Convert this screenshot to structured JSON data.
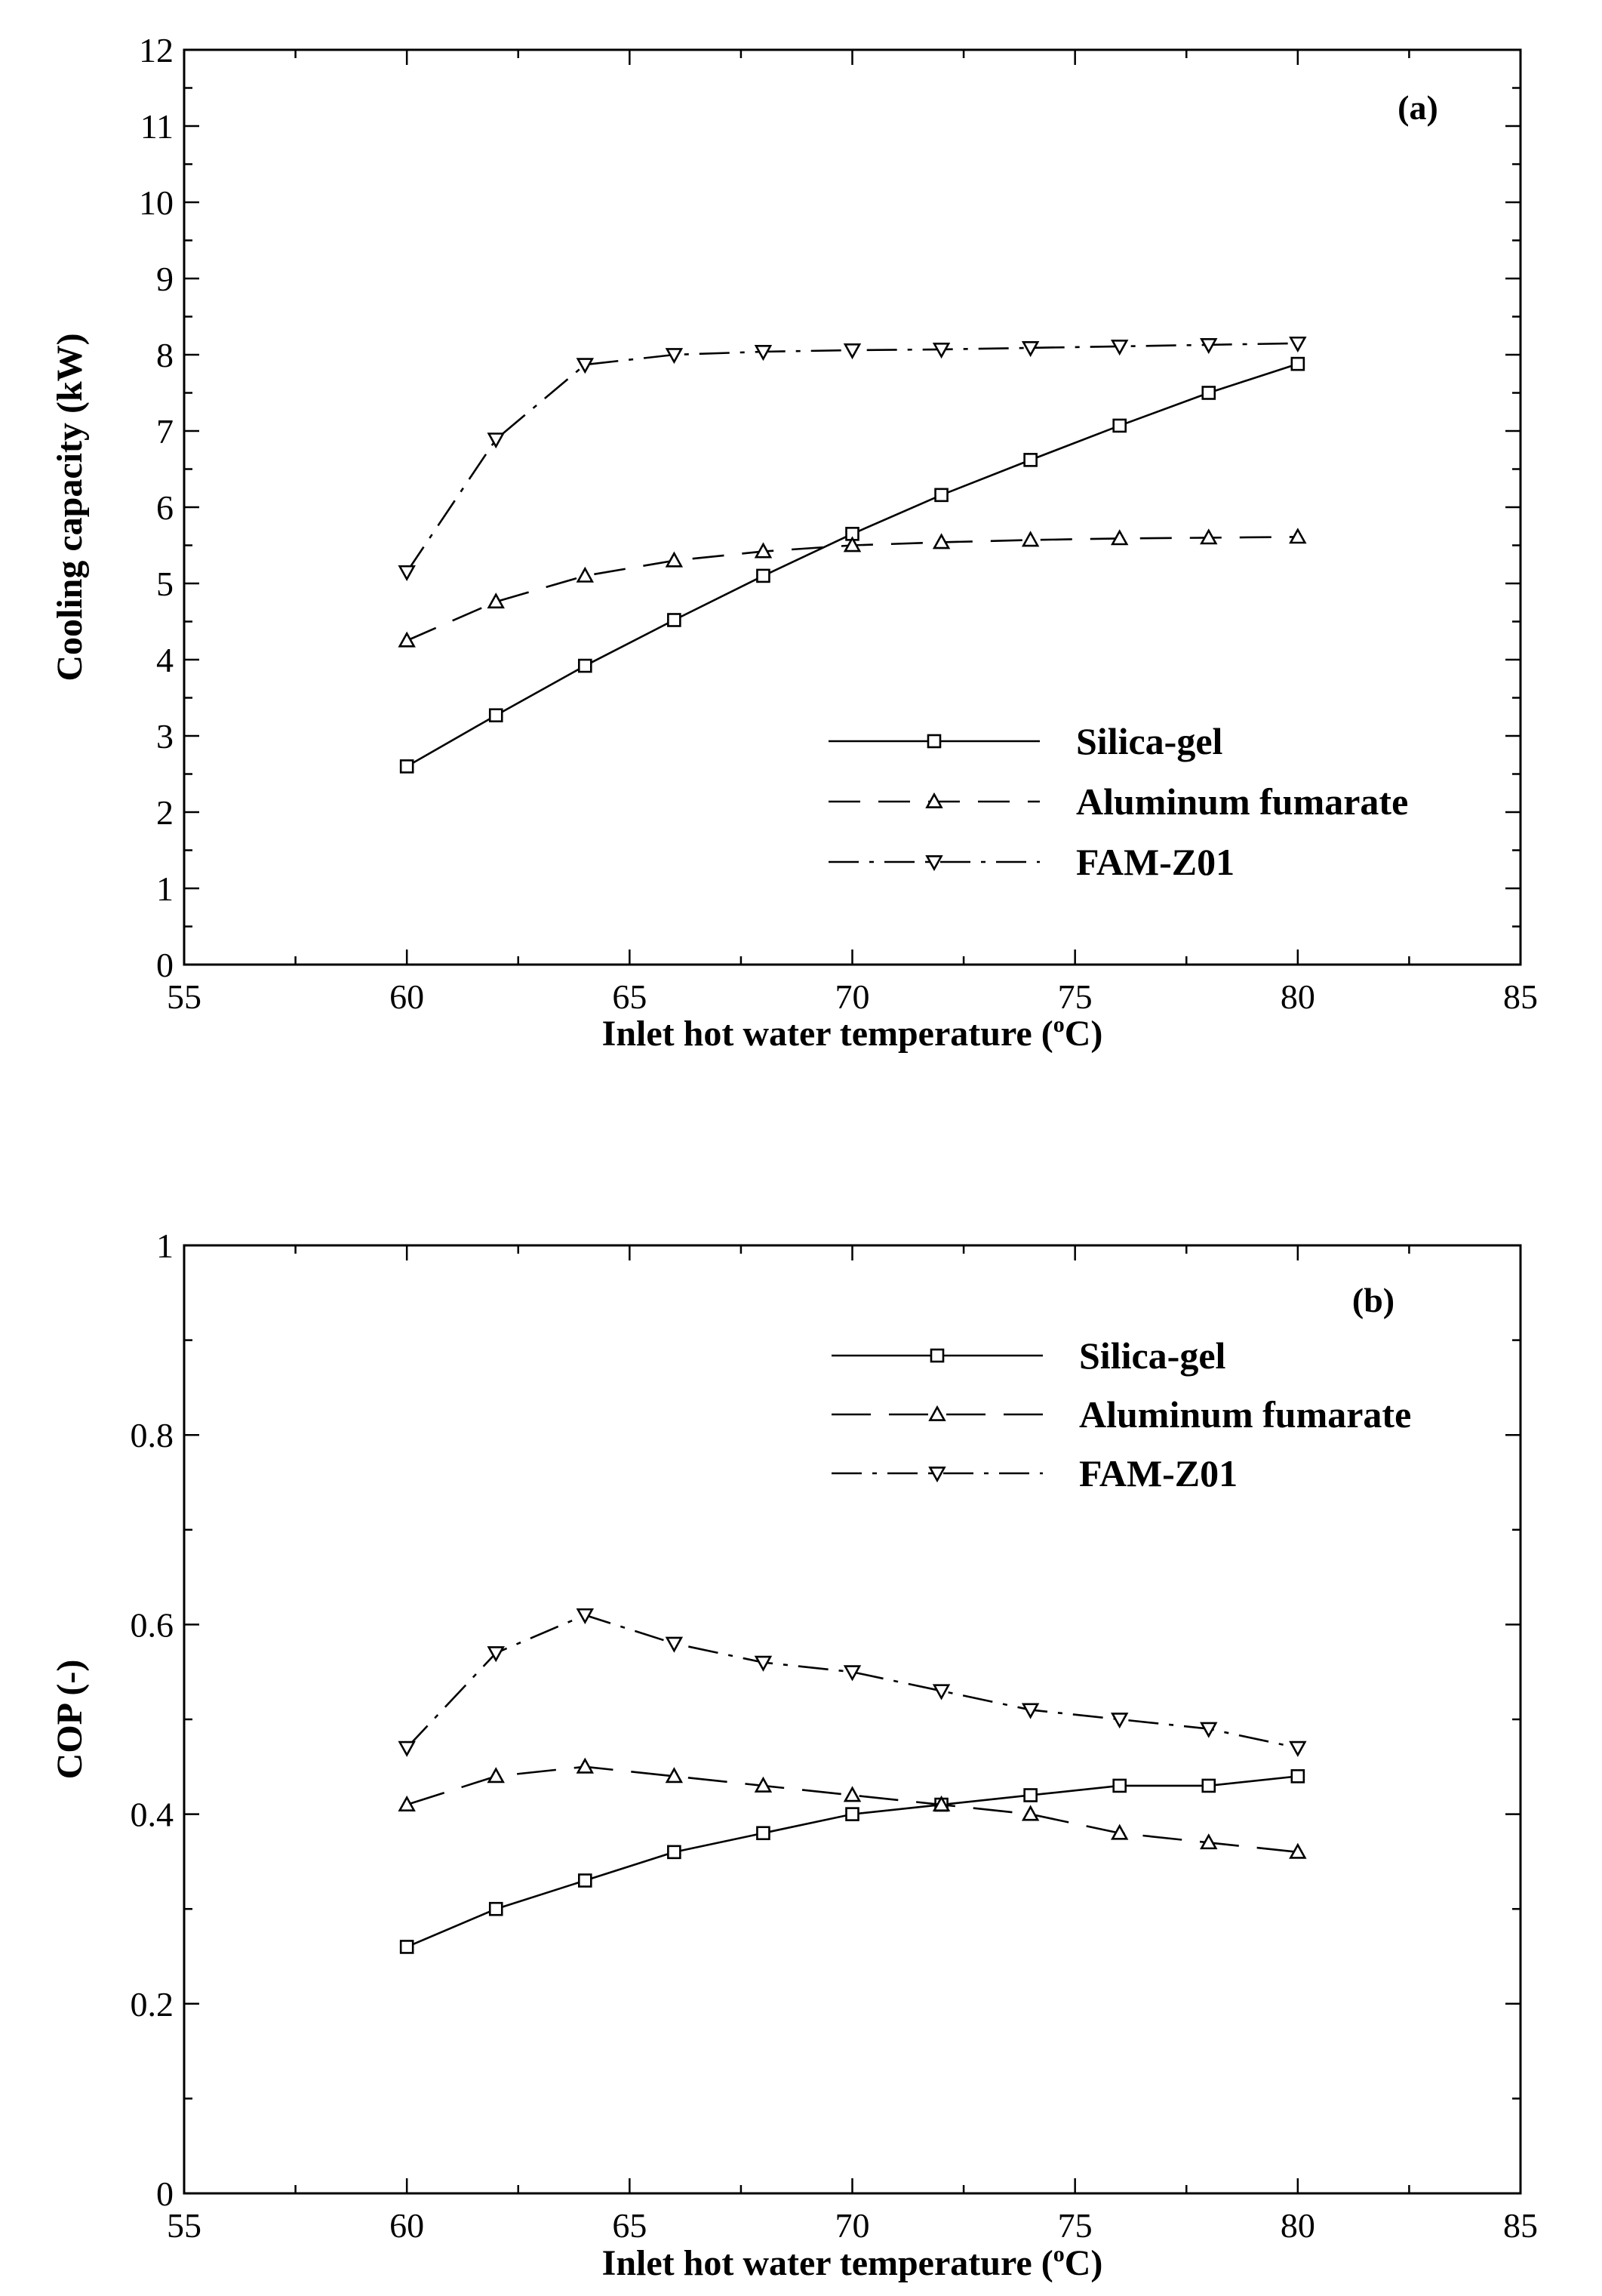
{
  "colors": {
    "background": "#ffffff",
    "ink": "#000000"
  },
  "chart_data": [
    {
      "id": "a",
      "type": "line",
      "panel_label": "(a)",
      "title": "",
      "xlabel": "Inlet hot water temperature (",
      "xlabel_superscript": "o",
      "xlabel_suffix": "C)",
      "ylabel": "Cooling capacity (kW)",
      "xlim": [
        55,
        85
      ],
      "ylim": [
        0,
        12
      ],
      "xticks": [
        55,
        60,
        65,
        70,
        75,
        80,
        85
      ],
      "xtick_labels": [
        "55",
        "60",
        "65",
        "70",
        "75",
        "80",
        "85"
      ],
      "yticks": [
        0,
        1,
        2,
        3,
        4,
        5,
        6,
        7,
        8,
        9,
        10,
        11,
        12
      ],
      "ytick_labels": [
        "0",
        "1",
        "2",
        "3",
        "4",
        "5",
        "6",
        "7",
        "8",
        "9",
        "10",
        "11",
        "12"
      ],
      "grid": false,
      "legend_position": "lower-right",
      "x": [
        60,
        62,
        64,
        66,
        68,
        70,
        72,
        74,
        76,
        78,
        80
      ],
      "series": [
        {
          "name": "Silica-gel",
          "line_style": "solid",
          "marker": "square",
          "values": [
            2.6,
            3.27,
            3.92,
            4.52,
            5.1,
            5.65,
            6.16,
            6.62,
            7.07,
            7.5,
            7.88
          ]
        },
        {
          "name": "Aluminum fumarate",
          "line_style": "dashed",
          "marker": "triangle-up",
          "values": [
            4.25,
            4.76,
            5.1,
            5.3,
            5.42,
            5.5,
            5.54,
            5.57,
            5.59,
            5.6,
            5.61
          ]
        },
        {
          "name": "FAM-Z01",
          "line_style": "dash-dot",
          "marker": "triangle-down",
          "values": [
            5.15,
            6.89,
            7.87,
            8.0,
            8.04,
            8.06,
            8.07,
            8.09,
            8.11,
            8.13,
            8.15
          ]
        }
      ]
    },
    {
      "id": "b",
      "type": "line",
      "panel_label": "(b)",
      "title": "",
      "xlabel": "Inlet hot water temperature (",
      "xlabel_superscript": "o",
      "xlabel_suffix": "C)",
      "ylabel": "COP (-)",
      "xlim": [
        55,
        85
      ],
      "ylim": [
        0,
        1
      ],
      "xticks": [
        55,
        60,
        65,
        70,
        75,
        80,
        85
      ],
      "xtick_labels": [
        "55",
        "60",
        "65",
        "70",
        "75",
        "80",
        "85"
      ],
      "yticks": [
        0,
        0.2,
        0.4,
        0.6,
        0.8,
        1
      ],
      "ytick_labels": [
        "0",
        "0.2",
        "0.4",
        "0.6",
        "0.8",
        "1"
      ],
      "grid": false,
      "legend_position": "top-right",
      "x": [
        60,
        62,
        64,
        66,
        68,
        70,
        72,
        74,
        76,
        78,
        80
      ],
      "series": [
        {
          "name": "Silica-gel",
          "line_style": "solid",
          "marker": "square",
          "values": [
            0.26,
            0.3,
            0.33,
            0.36,
            0.38,
            0.4,
            0.41,
            0.42,
            0.43,
            0.43,
            0.44
          ]
        },
        {
          "name": "Aluminum fumarate",
          "line_style": "long-dashed",
          "marker": "triangle-up",
          "values": [
            0.41,
            0.44,
            0.45,
            0.44,
            0.43,
            0.42,
            0.41,
            0.4,
            0.38,
            0.37,
            0.36
          ]
        },
        {
          "name": "FAM-Z01",
          "line_style": "dash-dot",
          "marker": "triangle-down",
          "values": [
            0.47,
            0.57,
            0.61,
            0.58,
            0.56,
            0.55,
            0.53,
            0.51,
            0.5,
            0.49,
            0.47
          ]
        }
      ]
    }
  ]
}
